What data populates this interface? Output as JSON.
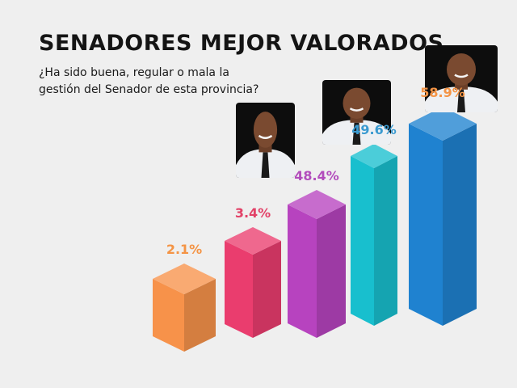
{
  "title": "SENADORES MEJOR VALORADOS",
  "subtitle": "¿Ha sido buena, regular o mala la gestión del Senador de esta provincia?",
  "chart_data": {
    "type": "bar",
    "categories": [
      "",
      "",
      "",
      "",
      ""
    ],
    "values": [
      2.1,
      3.4,
      48.4,
      49.6,
      58.9
    ],
    "value_labels": [
      "2.1%",
      "3.4%",
      "48.4%",
      "49.6%",
      "58.9%"
    ],
    "colors": [
      "#f7924a",
      "#ea3d6e",
      "#b743bf",
      "#18bfce",
      "#1f82d0"
    ],
    "label_colors": [
      "#f49445",
      "#e24268",
      "#b24cbc",
      "#3a9ad0",
      "#f49445"
    ],
    "photos": [
      null,
      null,
      "senator-photo",
      "senator-photo",
      "senator-photo"
    ]
  }
}
